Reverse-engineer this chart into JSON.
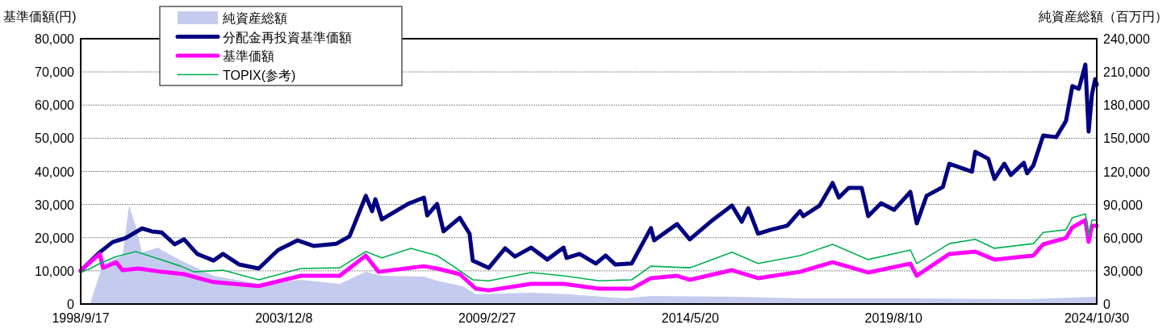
{
  "chart_data": {
    "type": "line",
    "ylabel": "基準価額(円)",
    "y2label": "純資産総額（百万円）",
    "xlim": [
      "1998-09-17",
      "2024-10-30"
    ],
    "xticks": [
      {
        "value": "1998-09-17",
        "label": "1998/9/17"
      },
      {
        "value": "2003-12-08",
        "label": "2003/12/8"
      },
      {
        "value": "2009-02-27",
        "label": "2009/2/27"
      },
      {
        "value": "2014-05-20",
        "label": "2014/5/20"
      },
      {
        "value": "2019-08-10",
        "label": "2019/8/10"
      },
      {
        "value": "2024-10-30",
        "label": "2024/10/30"
      }
    ],
    "ylim": [
      0,
      80000
    ],
    "yticks": [
      {
        "value": 0,
        "label": "0"
      },
      {
        "value": 10000,
        "label": "10,000"
      },
      {
        "value": 20000,
        "label": "20,000"
      },
      {
        "value": 30000,
        "label": "30,000"
      },
      {
        "value": 40000,
        "label": "40,000"
      },
      {
        "value": 50000,
        "label": "50,000"
      },
      {
        "value": 60000,
        "label": "60,000"
      },
      {
        "value": 70000,
        "label": "70,000"
      },
      {
        "value": 80000,
        "label": "80,000"
      }
    ],
    "y2lim": [
      0,
      240000
    ],
    "y2ticks": [
      {
        "value": 0,
        "label": "0"
      },
      {
        "value": 30000,
        "label": "30,000"
      },
      {
        "value": 60000,
        "label": "60,000"
      },
      {
        "value": 90000,
        "label": "90,000"
      },
      {
        "value": 120000,
        "label": "120,000"
      },
      {
        "value": 150000,
        "label": "150,000"
      },
      {
        "value": 180000,
        "label": "180,000"
      },
      {
        "value": 210000,
        "label": "210,000"
      },
      {
        "value": 240000,
        "label": "240,000"
      }
    ],
    "grid": "y",
    "legend": "top left",
    "marker": "none",
    "line_style": "solid",
    "series": [
      {
        "name": "純資産総額",
        "type": "area",
        "axis": "y2",
        "color": "#c5cbee",
        "x": [
          "1998-09-17",
          "1998-12",
          "1999-04",
          "1999-10",
          "1999-12",
          "2000-02",
          "2000-04",
          "2000-09",
          "2000-10",
          "2001-04",
          "2002-02",
          "2003-04",
          "2004-05",
          "2005-05",
          "2006-01",
          "2006-06",
          "2007-07",
          "2007-11",
          "2008-07",
          "2008-11",
          "2010-04",
          "2011-04",
          "2012-09",
          "2013-05",
          "2015-06",
          "2017-03",
          "2020-01",
          "2023-01",
          "2024-10-30"
        ],
        "values": [
          0,
          500,
          36500,
          43800,
          89000,
          70800,
          46700,
          51100,
          48900,
          39400,
          25500,
          18200,
          21900,
          18200,
          29200,
          25500,
          24800,
          21200,
          16000,
          8800,
          10200,
          8800,
          5100,
          7300,
          6600,
          5100,
          5100,
          4400,
          6600
        ]
      },
      {
        "name": "分配金再投資基準価額",
        "color": "#000080",
        "x": [
          "1998-09-17",
          "1999-03",
          "1999-07",
          "1999-11",
          "2000-04",
          "2000-07",
          "2000-10",
          "2001-02",
          "2001-05",
          "2001-09",
          "2002-02",
          "2002-05",
          "2002-10",
          "2003-04",
          "2003-10",
          "2004-04",
          "2004-09",
          "2005-04",
          "2005-08",
          "2006-01",
          "2006-03",
          "2006-04",
          "2006-06",
          "2007-02",
          "2007-07",
          "2007-08",
          "2007-11",
          "2008-01",
          "2008-06",
          "2008-09",
          "2008-10",
          "2009-03",
          "2009-08",
          "2009-11",
          "2010-04",
          "2010-09",
          "2011-02",
          "2011-03",
          "2011-07",
          "2011-12",
          "2012-03",
          "2012-06",
          "2012-11",
          "2013-05",
          "2013-06",
          "2014-01",
          "2014-05",
          "2014-12",
          "2015-06",
          "2015-09",
          "2015-11",
          "2016-02",
          "2016-06",
          "2016-11",
          "2017-03",
          "2017-04",
          "2017-09",
          "2018-01",
          "2018-03",
          "2018-06",
          "2018-10",
          "2018-12",
          "2019-04",
          "2019-08",
          "2020-01",
          "2020-03",
          "2020-06",
          "2020-11",
          "2021-01",
          "2021-08",
          "2021-09",
          "2022-01",
          "2022-03",
          "2022-06",
          "2022-08",
          "2022-12",
          "2023-01",
          "2023-03",
          "2023-06",
          "2023-10",
          "2024-01",
          "2024-03",
          "2024-05",
          "2024-07",
          "2024-08",
          "2024-09",
          "2024-10-15",
          "2024-10-30"
        ],
        "values": [
          10000,
          15600,
          18700,
          19900,
          22800,
          21900,
          21600,
          18000,
          19500,
          15100,
          13100,
          15100,
          11900,
          10700,
          16300,
          19200,
          17500,
          18200,
          20400,
          32600,
          28000,
          31600,
          25500,
          30200,
          32100,
          26700,
          30200,
          21900,
          26000,
          21200,
          13100,
          10900,
          16800,
          14300,
          17000,
          13400,
          17000,
          13900,
          15100,
          12200,
          14600,
          11900,
          12200,
          22900,
          19200,
          24100,
          19500,
          25300,
          29700,
          24800,
          28900,
          21200,
          22400,
          23600,
          28000,
          26500,
          29700,
          36500,
          32100,
          35000,
          35000,
          26500,
          30400,
          28400,
          33800,
          24300,
          32600,
          35300,
          42300,
          39900,
          45900,
          43800,
          37700,
          42300,
          38900,
          42600,
          39400,
          41800,
          50800,
          50300,
          55200,
          65700,
          64900,
          72200,
          52000,
          63200,
          67800,
          66100
        ]
      },
      {
        "name": "基準価額",
        "color": "#ff00ff",
        "x": [
          "1998-09-17",
          "1999-03",
          "1999-04",
          "1999-08",
          "1999-10",
          "2000-03",
          "2000-10",
          "2001-05",
          "2002-02",
          "2003-04",
          "2004-05",
          "2005-05",
          "2006-01",
          "2006-05",
          "2007-07",
          "2007-11",
          "2008-06",
          "2008-11",
          "2009-03",
          "2010-04",
          "2011-02",
          "2012-01",
          "2012-11",
          "2013-05",
          "2014-01",
          "2014-05",
          "2015-06",
          "2016-02",
          "2017-03",
          "2018-01",
          "2018-12",
          "2020-01",
          "2020-03",
          "2021-01",
          "2021-09",
          "2022-03",
          "2023-03",
          "2023-06",
          "2024-01",
          "2024-03",
          "2024-07",
          "2024-08",
          "2024-09",
          "2024-10-30"
        ],
        "values": [
          10200,
          15100,
          10900,
          12600,
          10200,
          10700,
          9700,
          9000,
          6600,
          5400,
          8500,
          8500,
          14600,
          9700,
          11400,
          10700,
          9000,
          4600,
          4100,
          6100,
          6100,
          4600,
          4600,
          7800,
          8500,
          7300,
          10200,
          7800,
          9700,
          12600,
          9500,
          12200,
          8500,
          15100,
          15800,
          13400,
          14600,
          18000,
          19900,
          23100,
          25300,
          18700,
          23600,
          23600
        ]
      },
      {
        "name": "TOPIX(参考)",
        "color": "#00b050",
        "x": [
          "1998-09-17",
          "1998-12",
          "1999-03",
          "1999-08",
          "2000-02",
          "2000-06",
          "2001-04",
          "2001-08",
          "2002-05",
          "2003-04",
          "2004-05",
          "2005-05",
          "2006-01",
          "2006-06",
          "2007-03",
          "2007-11",
          "2008-04",
          "2008-10",
          "2009-03",
          "2010-04",
          "2011-02",
          "2012-01",
          "2012-11",
          "2013-05",
          "2014-05",
          "2015-06",
          "2016-02",
          "2017-03",
          "2018-01",
          "2018-12",
          "2020-01",
          "2020-03",
          "2021-01",
          "2021-09",
          "2022-03",
          "2023-03",
          "2023-06",
          "2024-01",
          "2024-03",
          "2024-07",
          "2024-08",
          "2024-09",
          "2024-10-30"
        ],
        "values": [
          9500,
          10700,
          12200,
          14300,
          15800,
          14600,
          11400,
          9700,
          10200,
          7300,
          10700,
          10900,
          15800,
          13900,
          16800,
          14600,
          11400,
          7300,
          7000,
          9500,
          8500,
          7000,
          7300,
          11400,
          10900,
          15600,
          12200,
          14600,
          18000,
          13400,
          16300,
          12200,
          18200,
          19500,
          16800,
          18200,
          21600,
          22400,
          26000,
          27200,
          20700,
          25300,
          25300
        ]
      }
    ]
  }
}
